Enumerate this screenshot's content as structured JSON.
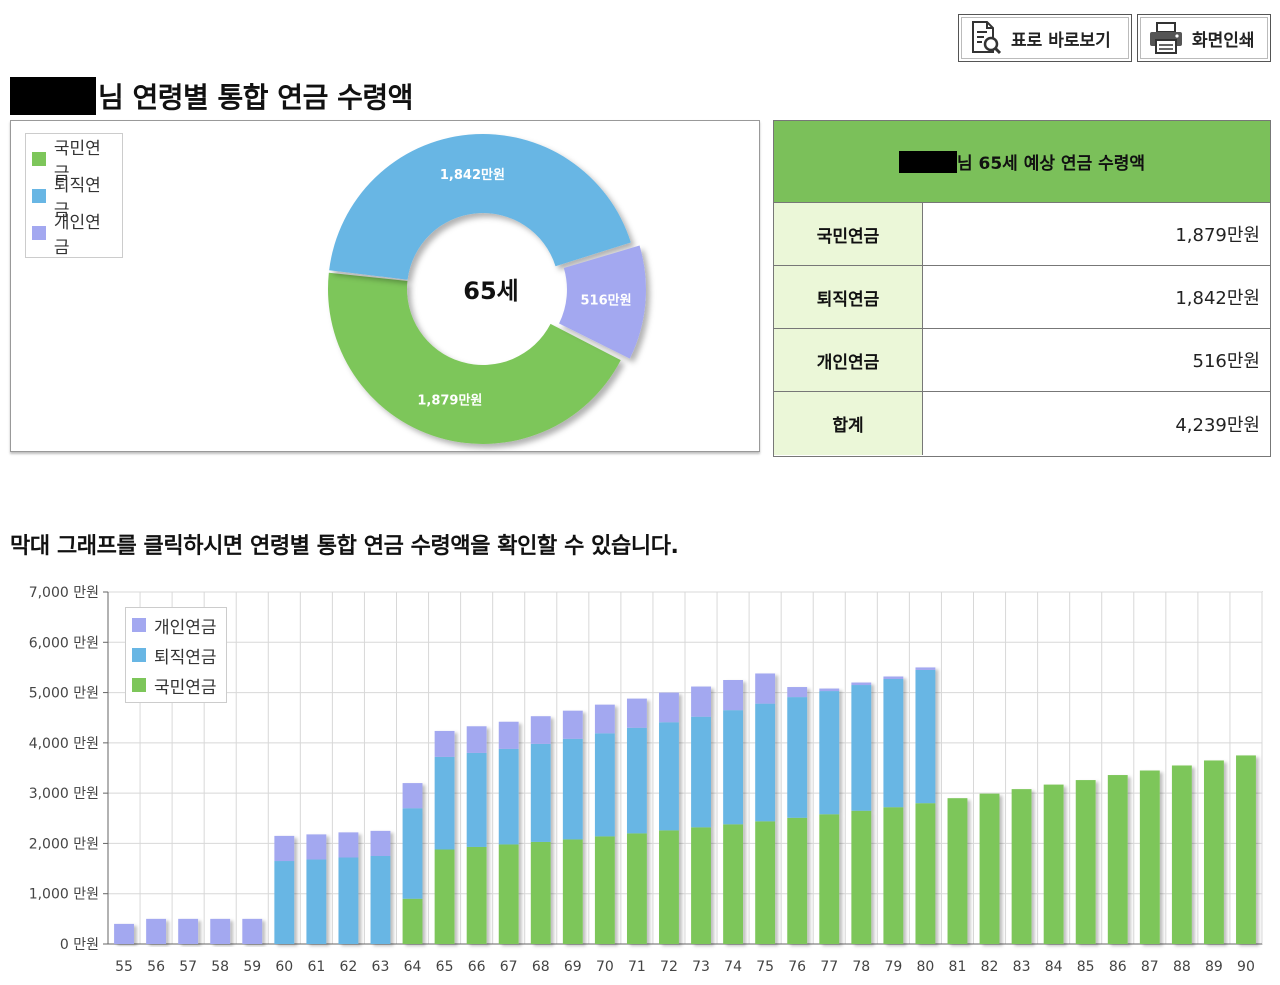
{
  "toolbar": {
    "view_table_label": "표로 바로보기",
    "print_label": "화면인쇄"
  },
  "header": {
    "title_suffix": "님 연령별 통합 연금 수령액"
  },
  "summary": {
    "heading_suffix": "님 65세 예상 연금 수령액",
    "rows": [
      {
        "label": "국민연금",
        "value": "1,879만원"
      },
      {
        "label": "퇴직연금",
        "value": "1,842만원"
      },
      {
        "label": "개인연금",
        "value": "516만원"
      },
      {
        "label": "합계",
        "value": "4,239만원"
      }
    ]
  },
  "instruction": "막대 그래프를 클릭하시면 연령별 통합 연금 수령액을 확인할 수 있습니다.",
  "colors": {
    "national": "#7dc65a",
    "retirement": "#68b6e4",
    "personal": "#a3a8f0"
  },
  "chart_data": [
    {
      "type": "pie",
      "center_label": "65세",
      "legend": [
        "국민연금",
        "퇴직연금",
        "개인연금"
      ],
      "slices": [
        {
          "name": "국민연금",
          "value": 1879,
          "label": "1,879만원"
        },
        {
          "name": "퇴직연금",
          "value": 1842,
          "label": "1,842만원"
        },
        {
          "name": "개인연금",
          "value": 516,
          "label": "516만원"
        }
      ]
    },
    {
      "type": "bar",
      "stacked": true,
      "categories": [
        "55",
        "56",
        "57",
        "58",
        "59",
        "60",
        "61",
        "62",
        "63",
        "64",
        "65",
        "66",
        "67",
        "68",
        "69",
        "70",
        "71",
        "72",
        "73",
        "74",
        "75",
        "76",
        "77",
        "78",
        "79",
        "80",
        "81",
        "82",
        "83",
        "84",
        "85",
        "86",
        "87",
        "88",
        "89",
        "90"
      ],
      "legend": [
        "개인연금",
        "퇴직연금",
        "국민연금"
      ],
      "legend_position": "top-left",
      "ylim": [
        0,
        7000
      ],
      "yticks": [
        "0 만원",
        "1,000 만원",
        "2,000 만원",
        "3,000 만원",
        "4,000 만원",
        "5,000 만원",
        "6,000 만원",
        "7,000 만원"
      ],
      "grid": true,
      "series": [
        {
          "name": "국민연금",
          "values": [
            0,
            0,
            0,
            0,
            0,
            0,
            0,
            0,
            0,
            900,
            1879,
            1930,
            1980,
            2030,
            2080,
            2140,
            2200,
            2260,
            2320,
            2380,
            2440,
            2510,
            2580,
            2650,
            2720,
            2800,
            2900,
            2990,
            3080,
            3170,
            3260,
            3360,
            3450,
            3550,
            3650,
            3750
          ]
        },
        {
          "name": "퇴직연금",
          "values": [
            0,
            0,
            0,
            0,
            0,
            1650,
            1680,
            1720,
            1750,
            1800,
            1842,
            1870,
            1900,
            1950,
            2000,
            2050,
            2100,
            2150,
            2200,
            2270,
            2340,
            2400,
            2450,
            2500,
            2550,
            2650,
            0,
            0,
            0,
            0,
            0,
            0,
            0,
            0,
            0,
            0
          ]
        },
        {
          "name": "개인연금",
          "values": [
            400,
            500,
            500,
            500,
            500,
            500,
            500,
            500,
            500,
            500,
            516,
            530,
            540,
            550,
            560,
            570,
            580,
            590,
            600,
            600,
            600,
            200,
            50,
            50,
            50,
            50,
            0,
            0,
            0,
            0,
            0,
            0,
            0,
            0,
            0,
            0
          ]
        }
      ]
    }
  ]
}
